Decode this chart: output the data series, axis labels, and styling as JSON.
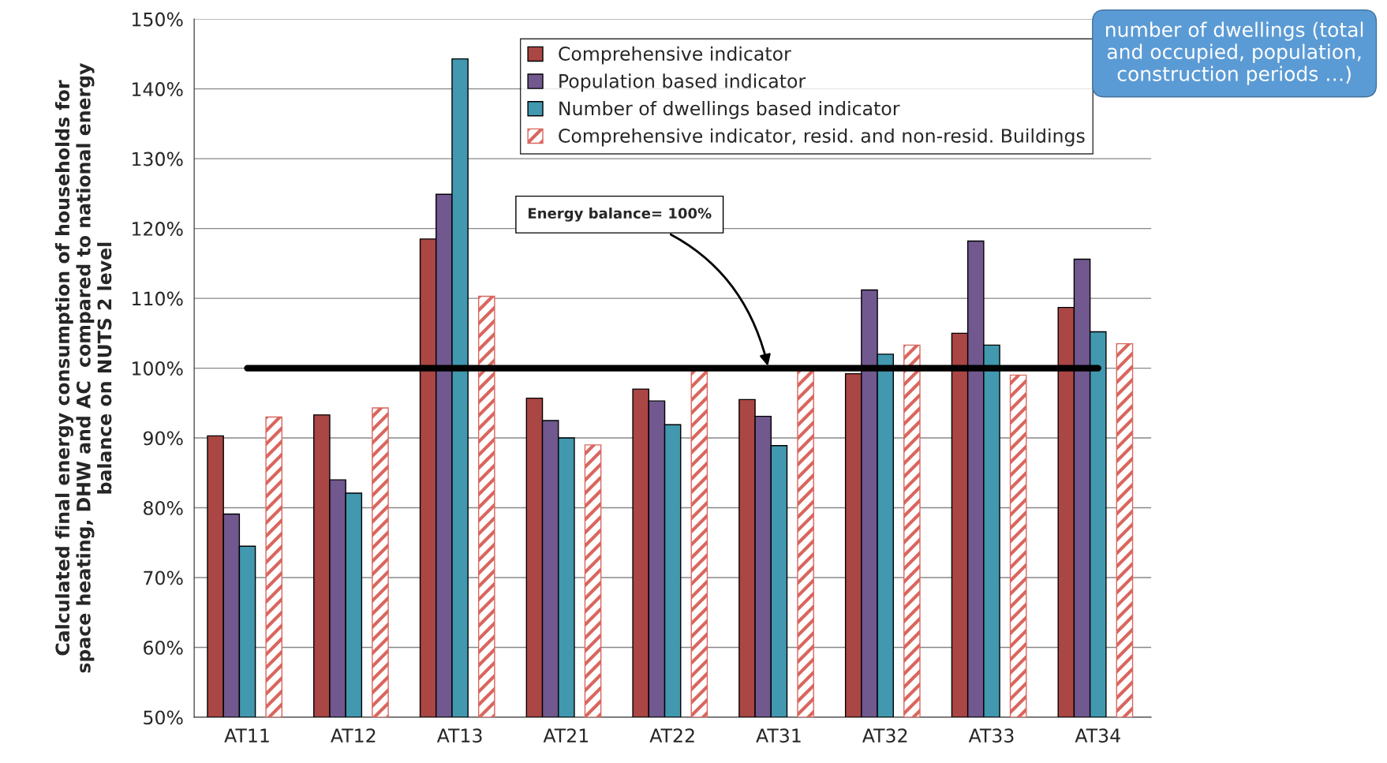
{
  "chart_data": {
    "type": "bar",
    "ylabel": "Calculated final energy consumption of households for\nspace heating, DHW and AC  compared to national energy\nbalance on NUTS 2 level",
    "categories": [
      "AT11",
      "AT12",
      "AT13",
      "AT21",
      "AT22",
      "AT31",
      "AT32",
      "AT33",
      "AT34"
    ],
    "series": [
      {
        "name": "Comprehensive indicator",
        "color": "#aa4644",
        "values": [
          90.3,
          93.3,
          118.5,
          95.7,
          97.0,
          95.5,
          99.2,
          105.0,
          108.7
        ]
      },
      {
        "name": "Population based indicator",
        "color": "#71588f",
        "values": [
          79.1,
          84.0,
          124.9,
          92.5,
          95.3,
          93.1,
          111.2,
          118.2,
          115.6
        ]
      },
      {
        "name": "Number of dwellings based indicator",
        "color": "#4198af",
        "values": [
          74.5,
          82.1,
          144.3,
          90.0,
          91.9,
          88.9,
          102.0,
          103.3,
          105.2
        ]
      },
      {
        "name": "Comprehensive indicator, resid. and non-resid. Buildings",
        "color": "#d9665e",
        "values": [
          93.0,
          94.3,
          110.3,
          89.0,
          99.8,
          100.0,
          103.3,
          99.0,
          103.5
        ]
      }
    ],
    "ylim": [
      50,
      150
    ],
    "yticks": [
      {
        "value": 50,
        "label": "50%"
      },
      {
        "value": 60,
        "label": "60%"
      },
      {
        "value": 70,
        "label": "70%"
      },
      {
        "value": 80,
        "label": "80%"
      },
      {
        "value": 90,
        "label": "90%"
      },
      {
        "value": 100,
        "label": "100%"
      },
      {
        "value": 110,
        "label": "110%"
      },
      {
        "value": 120,
        "label": "120%"
      },
      {
        "value": 130,
        "label": "130%"
      },
      {
        "value": 140,
        "label": "140%"
      },
      {
        "value": 150,
        "label": "150%"
      }
    ],
    "grid": "y",
    "legend": "top",
    "ref_lines": [
      {
        "axis": "y",
        "value": 100,
        "label": "Energy balance= 100%",
        "color": "#000000"
      }
    ],
    "annotations": [
      "number of dwellings (total\nand occupied, population,\nconstruction periods …)"
    ]
  }
}
